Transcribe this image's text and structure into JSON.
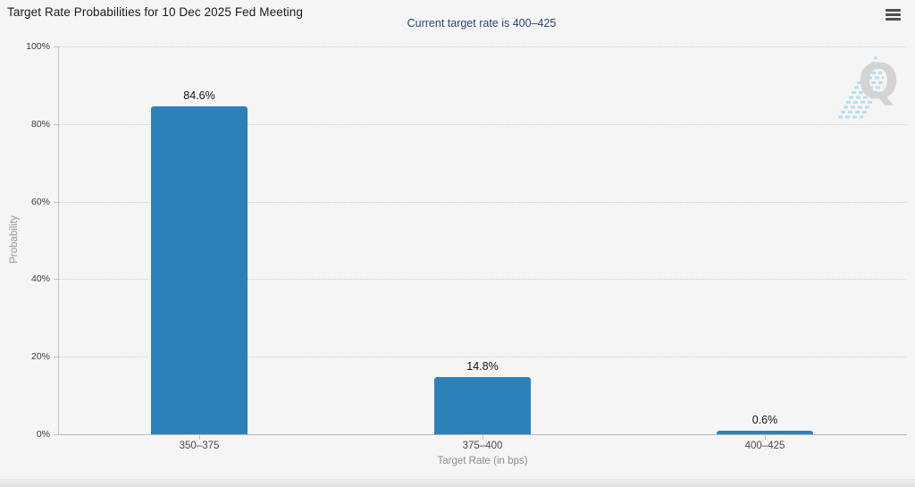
{
  "header": {
    "title": "Target Rate Probabilities for 10 Dec 2025 Fed Meeting",
    "menu_tooltip": "Chart context menu"
  },
  "chart_data": {
    "type": "bar",
    "title": "Target Rate Probabilities for 10 Dec 2025 Fed Meeting",
    "subtitle": "Current target rate is 400–425",
    "categories": [
      "350–375",
      "375–400",
      "400–425"
    ],
    "values": [
      84.6,
      14.8,
      0.6
    ],
    "value_labels": [
      "84.6%",
      "14.8%",
      "0.6%"
    ],
    "xlabel": "Target Rate (in bps)",
    "ylabel": "Probability",
    "ylim": [
      0,
      100
    ],
    "ytick_values": [
      0,
      20,
      40,
      60,
      80,
      100
    ],
    "ytick_labels": [
      "0%",
      "20%",
      "40%",
      "60%",
      "80%",
      "100%"
    ],
    "grid": "horizontal-dotted",
    "legend": "none",
    "bar_color": "#2e80b9",
    "subtitle_color": "#2e4372",
    "background_color": "#f5f5f5"
  },
  "watermark": {
    "letter": "Q"
  }
}
